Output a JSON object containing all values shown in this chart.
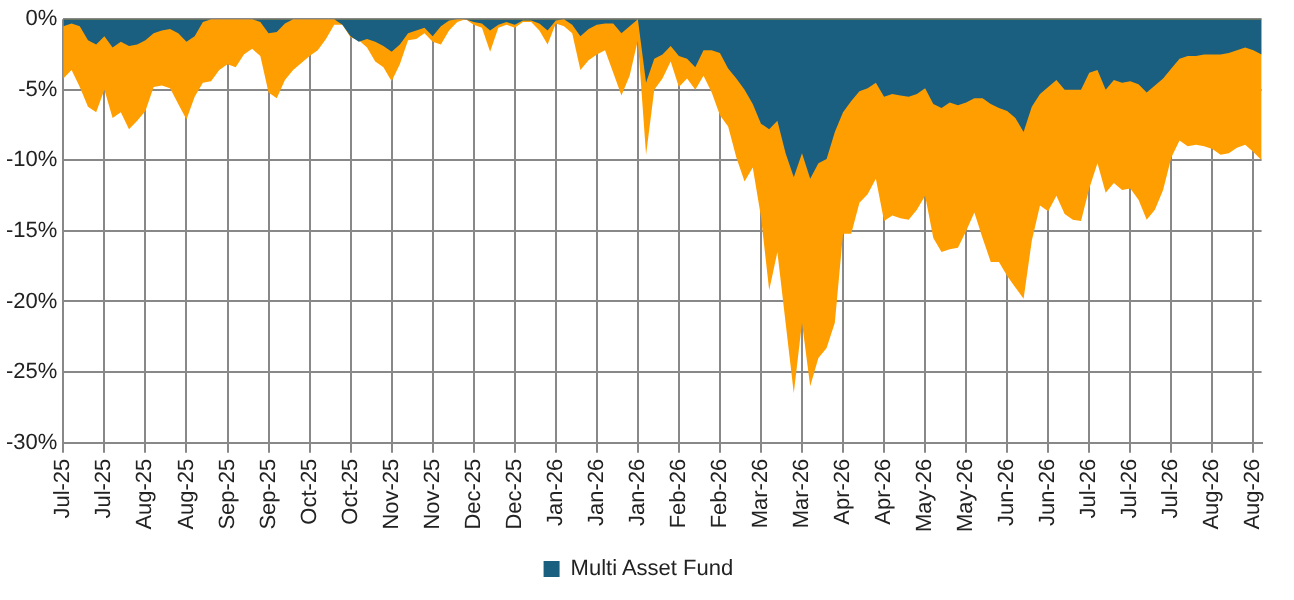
{
  "chart_data": {
    "type": "area",
    "categories": [
      "Jul-25",
      null,
      null,
      null,
      null,
      "Jul-25",
      null,
      null,
      null,
      null,
      "Aug-25",
      null,
      null,
      null,
      null,
      "Aug-25",
      null,
      null,
      null,
      null,
      "Sep-25",
      null,
      null,
      null,
      null,
      "Sep-25",
      null,
      null,
      null,
      null,
      "Oct-25",
      null,
      null,
      null,
      null,
      "Oct-25",
      null,
      null,
      null,
      null,
      "Nov-25",
      null,
      null,
      null,
      null,
      "Nov-25",
      null,
      null,
      null,
      null,
      "Dec-25",
      null,
      null,
      null,
      null,
      "Dec-25",
      null,
      null,
      null,
      null,
      "Jan-26",
      null,
      null,
      null,
      null,
      "Jan-26",
      null,
      null,
      null,
      null,
      "Jan-26",
      null,
      null,
      null,
      null,
      "Feb-26",
      null,
      null,
      null,
      null,
      "Feb-26",
      null,
      null,
      null,
      null,
      "Mar-26",
      null,
      null,
      null,
      null,
      "Mar-26",
      null,
      null,
      null,
      null,
      "Apr-26",
      null,
      null,
      null,
      null,
      "Apr-26",
      null,
      null,
      null,
      null,
      "May-26",
      null,
      null,
      null,
      null,
      "May-26",
      null,
      null,
      null,
      null,
      "Jun-26",
      null,
      null,
      null,
      null,
      "Jun-26",
      null,
      null,
      null,
      null,
      "Jul-26",
      null,
      null,
      null,
      null,
      "Jul-26",
      null,
      null,
      null,
      null,
      "Jul-26",
      null,
      null,
      null,
      null,
      "Aug-26",
      null,
      null,
      null,
      null,
      "Aug-26",
      null
    ],
    "series": [
      {
        "name": "Multi Asset Fund",
        "color": "#1a5e80",
        "values": [
          -0.5,
          -0.3,
          -0.5,
          -1.5,
          -1.8,
          -1.2,
          -2.0,
          -1.6,
          -1.9,
          -1.8,
          -1.5,
          -1.0,
          -0.8,
          -0.7,
          -1.0,
          -1.6,
          -1.2,
          -0.2,
          0,
          0,
          0,
          0,
          0,
          0,
          -0.2,
          -1.0,
          -0.9,
          -0.3,
          0,
          0,
          0,
          0,
          0,
          0,
          -0.4,
          -1.2,
          -1.6,
          -1.4,
          -1.6,
          -1.9,
          -2.3,
          -1.8,
          -1.0,
          -0.8,
          -0.6,
          -1.2,
          -0.5,
          -0.1,
          0,
          0,
          -0.2,
          -0.3,
          -0.8,
          -0.4,
          -0.2,
          -0.4,
          -0.1,
          -0.1,
          -0.3,
          -0.8,
          -0.1,
          0,
          -0.4,
          -1.2,
          -0.7,
          -0.4,
          -0.3,
          -0.3,
          -1.0,
          -0.5,
          0,
          -4.5,
          -2.8,
          -2.5,
          -1.9,
          -2.6,
          -2.8,
          -3.4,
          -2.2,
          -2.2,
          -2.4,
          -3.5,
          -4.2,
          -5.0,
          -6.0,
          -7.4,
          -7.8,
          -7.2,
          -9.5,
          -11.2,
          -9.5,
          -11.3,
          -10.2,
          -9.9,
          -8.0,
          -6.6,
          -5.8,
          -5.1,
          -4.9,
          -4.5,
          -5.5,
          -5.3,
          -5.4,
          -5.5,
          -5.3,
          -4.9,
          -6.0,
          -6.3,
          -5.9,
          -6.1,
          -5.9,
          -5.6,
          -5.6,
          -6.0,
          -6.3,
          -6.5,
          -7.0,
          -8.0,
          -6.2,
          -5.3,
          -4.8,
          -4.3,
          -5.0,
          -5.0,
          -5.0,
          -3.8,
          -3.6,
          -5.0,
          -4.3,
          -4.5,
          -4.4,
          -4.6,
          -5.2,
          -4.7,
          -4.2,
          -3.5,
          -2.8,
          -2.6,
          -2.6,
          -2.5,
          -2.5,
          -2.5,
          -2.4,
          -2.2,
          -2.0,
          -2.2,
          -2.5
        ]
      },
      {
        "color": "#ff9e00",
        "values": [
          -4.2,
          -3.6,
          -4.8,
          -6.2,
          -6.6,
          -5.0,
          -7.0,
          -6.6,
          -7.8,
          -7.2,
          -6.5,
          -4.8,
          -4.7,
          -4.9,
          -6.0,
          -7.1,
          -5.5,
          -4.5,
          -4.4,
          -3.6,
          -3.2,
          -3.4,
          -2.5,
          -2.1,
          -2.6,
          -5.2,
          -5.6,
          -4.3,
          -3.6,
          -3.1,
          -2.6,
          -2.2,
          -1.4,
          -0.4,
          -0.4,
          -1.3,
          -1.5,
          -2.0,
          -3.0,
          -3.4,
          -4.4,
          -3.2,
          -1.5,
          -1.4,
          -1.0,
          -1.6,
          -1.8,
          -0.8,
          -0.2,
          0,
          -0.4,
          -0.6,
          -2.3,
          -0.6,
          -0.4,
          -0.6,
          -0.2,
          -0.2,
          -0.8,
          -1.8,
          -0.3,
          -0.5,
          -1.0,
          -3.6,
          -2.9,
          -2.5,
          -2.2,
          -3.8,
          -5.4,
          -4.0,
          -1.5,
          -9.6,
          -5.0,
          -4.2,
          -3.0,
          -4.8,
          -4.2,
          -5.0,
          -4.0,
          -5.2,
          -6.8,
          -7.6,
          -9.8,
          -11.5,
          -10.5,
          -14.0,
          -19.2,
          -16.5,
          -21.5,
          -26.5,
          -21.5,
          -26.0,
          -24.0,
          -23.3,
          -21.5,
          -15.2,
          -15.2,
          -13.0,
          -12.4,
          -11.3,
          -14.3,
          -13.9,
          -14.1,
          -14.2,
          -13.5,
          -12.5,
          -15.5,
          -16.5,
          -16.3,
          -16.2,
          -15.0,
          -13.7,
          -15.5,
          -17.2,
          -17.2,
          -18.2,
          -19.0,
          -19.8,
          -15.7,
          -13.2,
          -13.6,
          -12.5,
          -13.8,
          -14.2,
          -14.3,
          -12.0,
          -10.2,
          -12.3,
          -11.6,
          -12.1,
          -12.0,
          -12.8,
          -14.2,
          -13.5,
          -12.1,
          -9.8,
          -8.6,
          -9.0,
          -8.9,
          -9.0,
          -9.2,
          -9.6,
          -9.5,
          -9.1,
          -8.9,
          -9.4,
          -10.0
        ]
      }
    ],
    "ylim": [
      -30,
      0
    ],
    "yticks": [
      {
        "value": 0,
        "label": "0%"
      },
      {
        "value": -5,
        "label": "-5%"
      },
      {
        "value": -10,
        "label": "-10%"
      },
      {
        "value": -15,
        "label": "-15%"
      },
      {
        "value": -20,
        "label": "-20%"
      },
      {
        "value": -25,
        "label": "-25%"
      },
      {
        "value": -30,
        "label": "-30%"
      }
    ],
    "grid": true,
    "legend": "bottom"
  }
}
